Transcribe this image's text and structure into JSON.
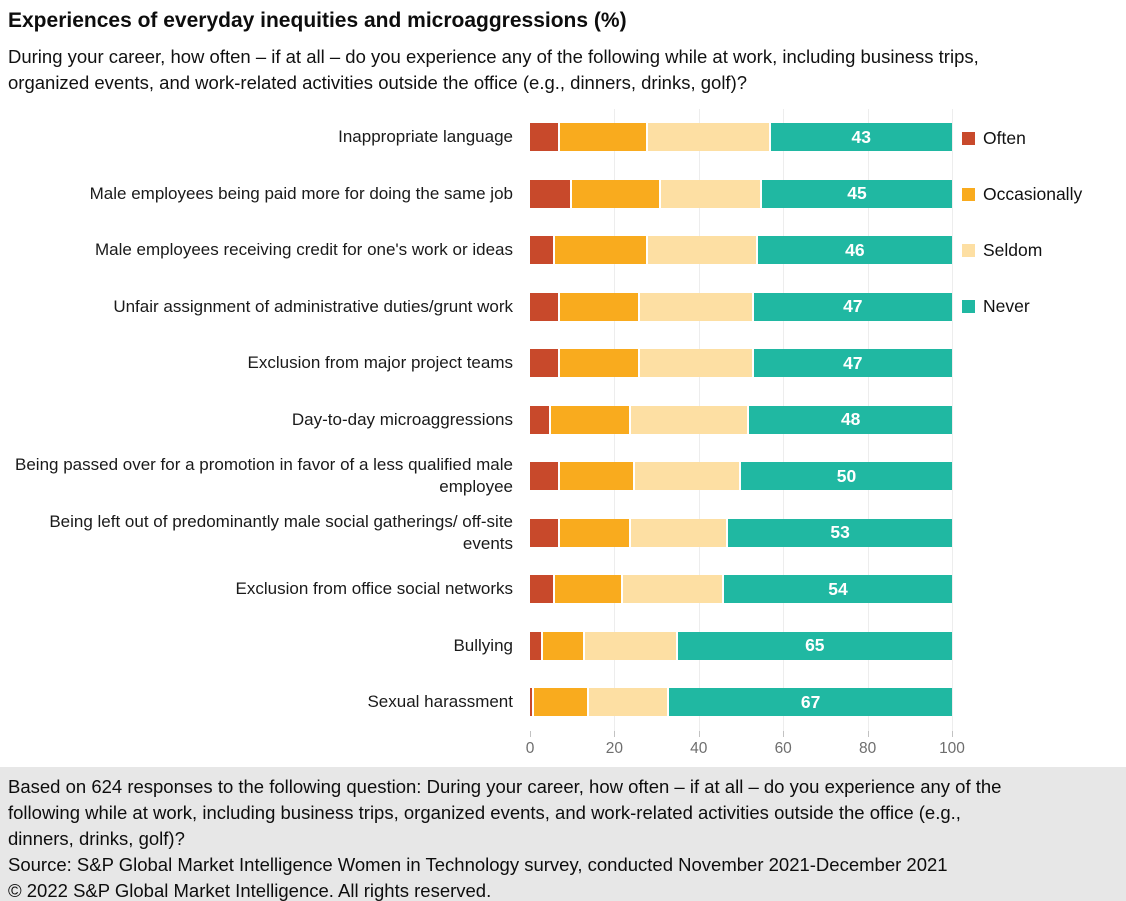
{
  "header": {
    "title": "Experiences of everyday inequities and microaggressions (%)",
    "subtitle": "During your career, how often – if at all – do you experience any of the following while at work, including business trips, organized events, and work-related activities outside the office (e.g., dinners, drinks, golf)?"
  },
  "chart_data": {
    "type": "bar",
    "orientation": "horizontal",
    "stacked": true,
    "unit": "%",
    "title": "Experiences of everyday inequities and microaggressions (%)",
    "categories": [
      "Inappropriate language",
      "Male employees being paid more for doing the same job",
      "Male employees receiving credit for one's work or ideas",
      "Unfair assignment of administrative duties/grunt work",
      "Exclusion from major project teams",
      "Day-to-day microaggressions",
      "Being passed over for a promotion in favor of a less qualified male employee",
      "Being left out of predominantly male social gatherings/ off-site events",
      "Exclusion from office social networks",
      "Bullying",
      "Sexual harassment"
    ],
    "series": [
      {
        "name": "Often",
        "color": "#C8492B",
        "values": [
          7,
          10,
          6,
          7,
          7,
          5,
          7,
          7,
          6,
          3,
          1
        ]
      },
      {
        "name": "Occasionally",
        "color": "#F9AB1E",
        "values": [
          21,
          21,
          22,
          19,
          19,
          19,
          18,
          17,
          16,
          10,
          13
        ]
      },
      {
        "name": "Seldom",
        "color": "#FDDFA3",
        "values": [
          29,
          24,
          26,
          27,
          27,
          28,
          25,
          23,
          24,
          22,
          19
        ]
      },
      {
        "name": "Never",
        "color": "#20B8A2",
        "values": [
          43,
          45,
          46,
          47,
          47,
          48,
          50,
          53,
          54,
          65,
          67
        ],
        "data_labels": true
      }
    ],
    "x_axis": {
      "min": 0,
      "max": 100,
      "ticks": [
        0,
        20,
        40,
        60,
        80,
        100
      ]
    },
    "legend_position": "right",
    "grid": "vertical"
  },
  "footer": {
    "note": "Based on 624 responses to the following question: During your career, how often – if at all – do you experience any of the following while at work, including business trips, organized events, and work-related activities outside the office (e.g., dinners, drinks, golf)?",
    "source": "Source: S&P Global Market Intelligence Women in Technology survey, conducted November 2021-December 2021",
    "copyright": "© 2022 S&P Global Market Intelligence. All rights reserved."
  }
}
